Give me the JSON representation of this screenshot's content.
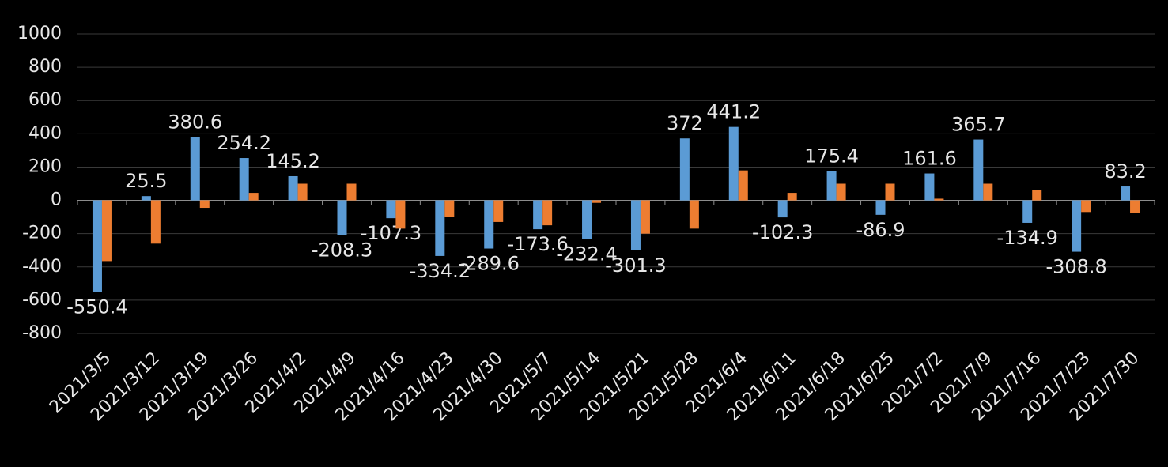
{
  "chart_data": {
    "type": "bar",
    "categories": [
      "2021/3/5",
      "2021/3/12",
      "2021/3/19",
      "2021/3/26",
      "2021/4/2",
      "2021/4/9",
      "2021/4/16",
      "2021/4/23",
      "2021/4/30",
      "2021/5/7",
      "2021/5/14",
      "2021/5/21",
      "2021/5/28",
      "2021/6/4",
      "2021/6/11",
      "2021/6/18",
      "2021/6/25",
      "2021/7/2",
      "2021/7/9",
      "2021/7/16",
      "2021/7/23",
      "2021/7/30"
    ],
    "series": [
      {
        "color": "#5b9bd5",
        "values": [
          -550.4,
          25.5,
          380.6,
          254.2,
          145.2,
          -208.3,
          -107.3,
          -334.2,
          -289.6,
          -173.6,
          -232.4,
          -301.3,
          372,
          441.2,
          -102.3,
          175.4,
          -86.9,
          161.6,
          365.7,
          -134.9,
          -308.8,
          83.2
        ],
        "data_labels": true
      },
      {
        "color": "#ed7d31",
        "values": [
          -365,
          -260,
          -45,
          45,
          100,
          100,
          -170,
          -100,
          -130,
          -150,
          -15,
          -200,
          -170,
          180,
          45,
          100,
          100,
          10,
          100,
          60,
          -70,
          -75
        ],
        "data_labels": false
      }
    ],
    "ylim": [
      -800,
      1000
    ],
    "yticks": [
      -800,
      -600,
      -400,
      -200,
      0,
      200,
      400,
      600,
      800,
      1000
    ],
    "grid": true
  }
}
